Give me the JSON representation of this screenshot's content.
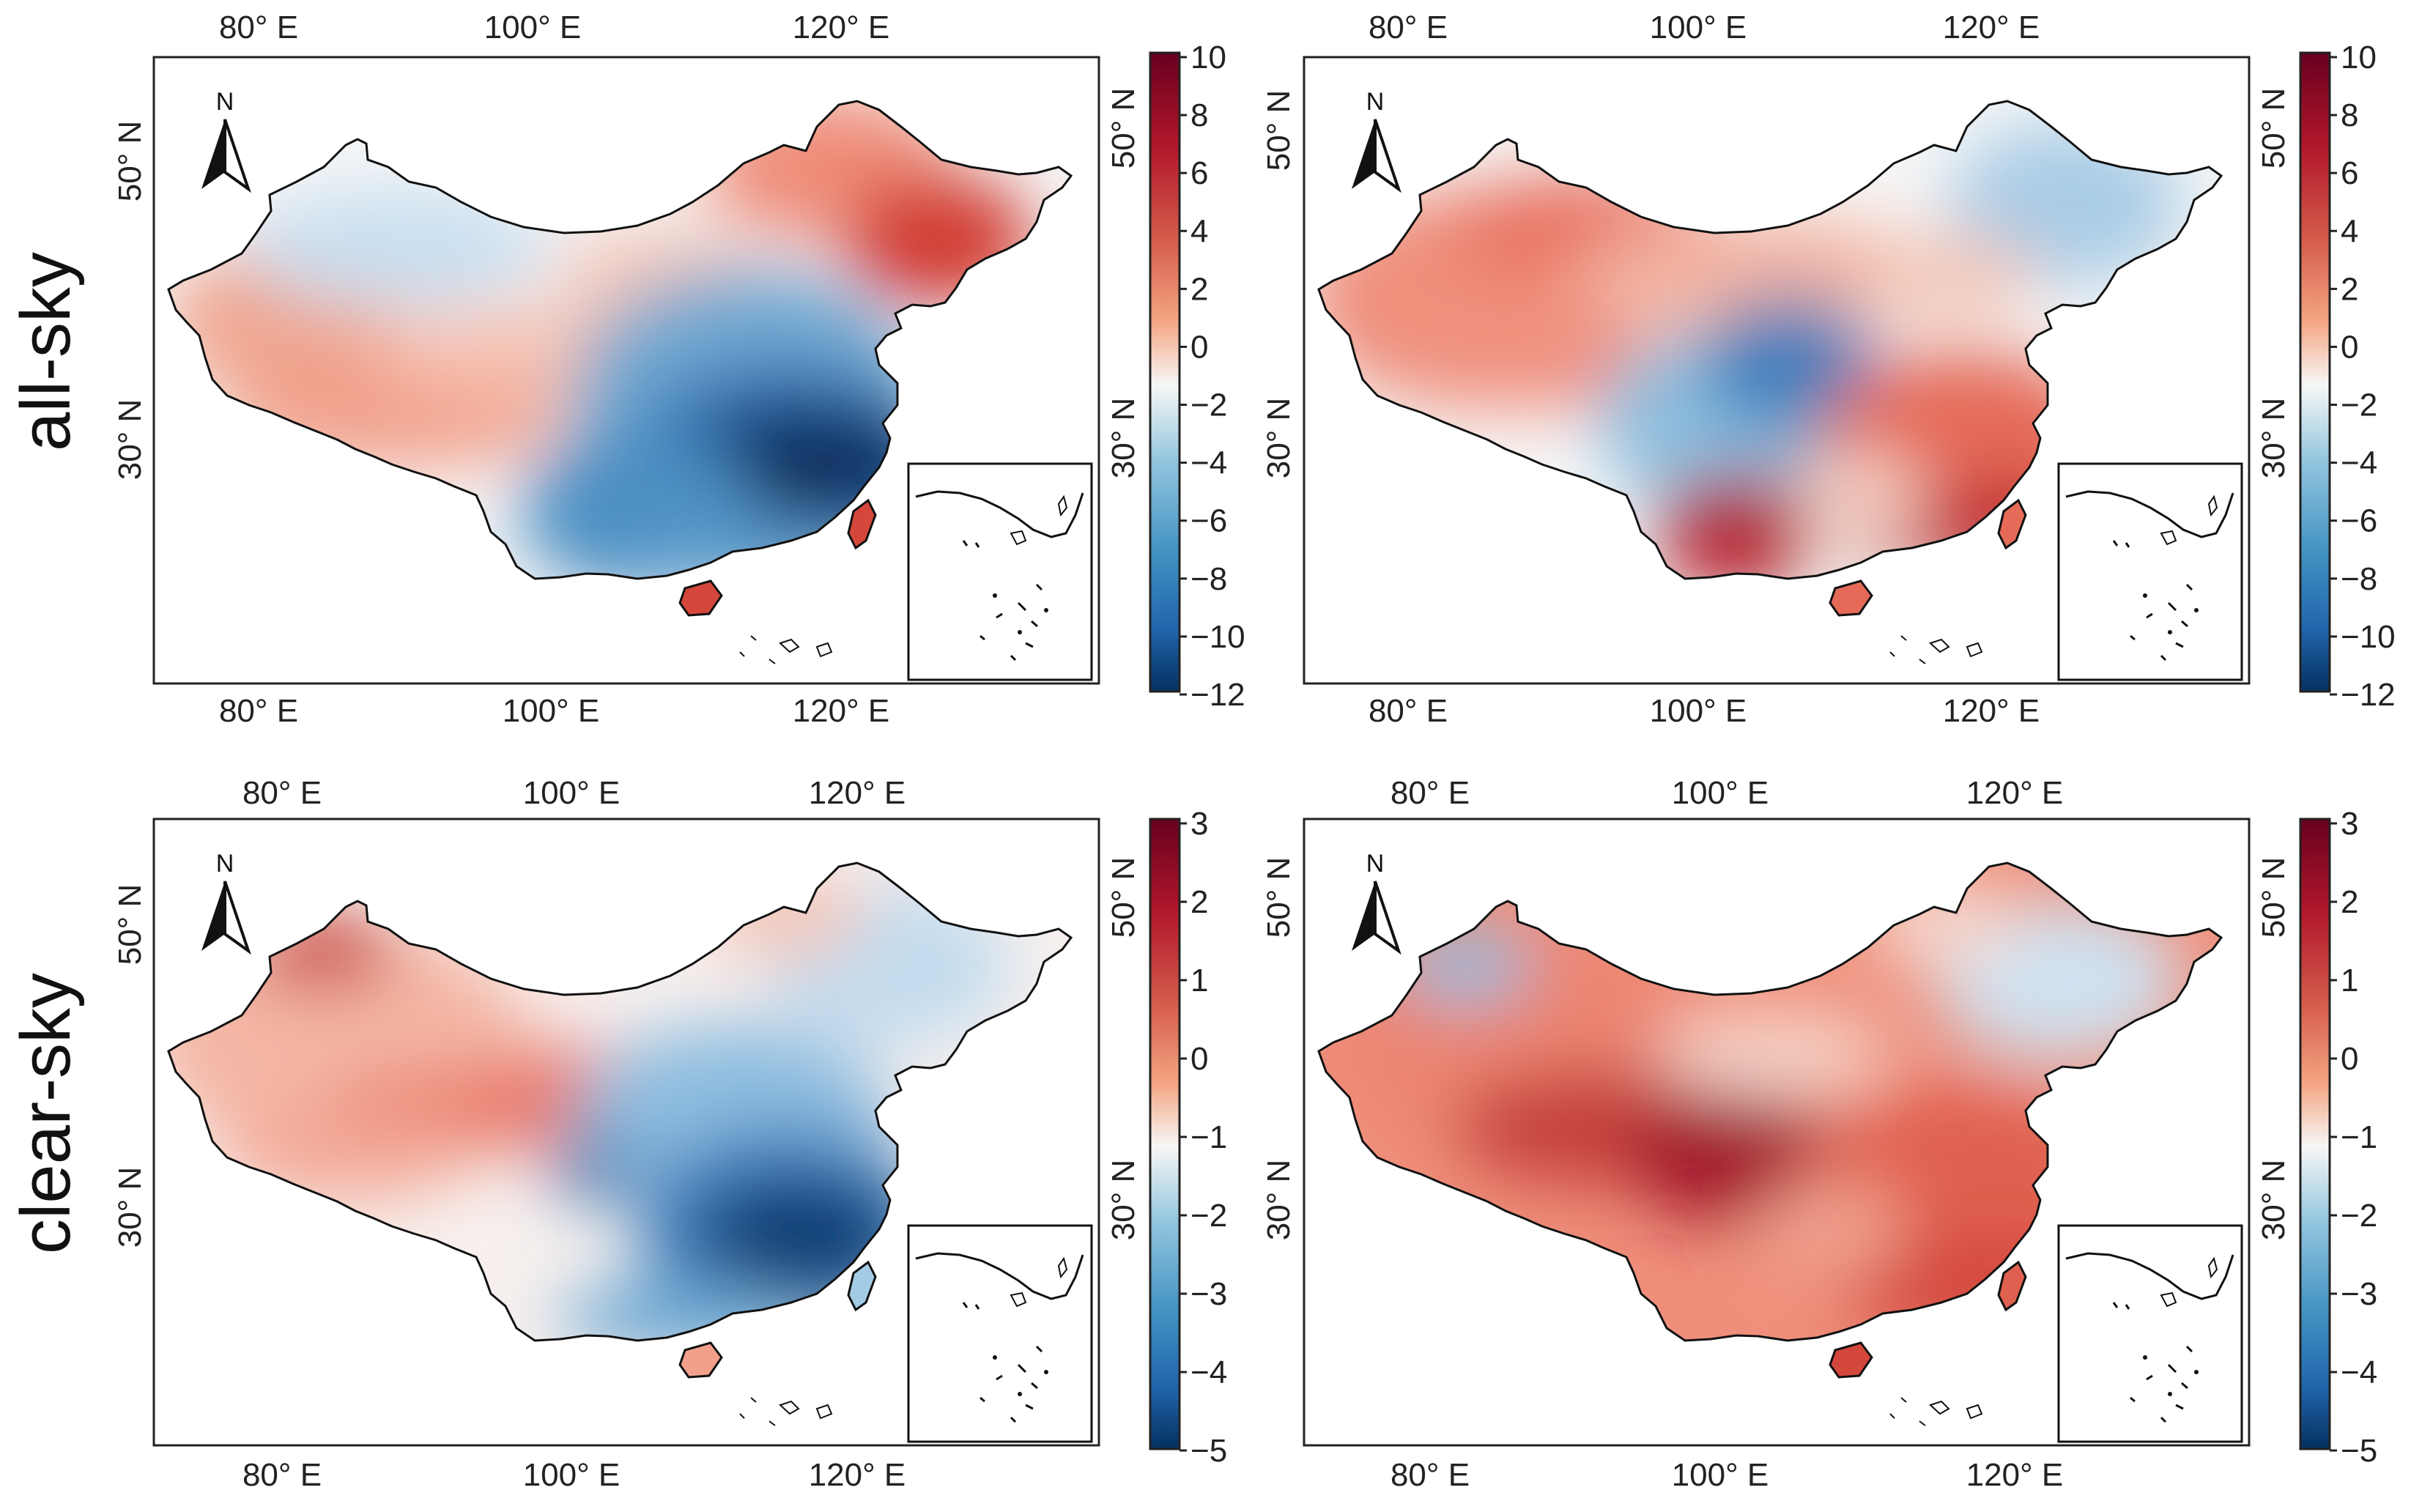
{
  "figure": {
    "row_labels": [
      "all-sky",
      "clear-sky"
    ],
    "north_arrow_label": "N",
    "lon_labels": [
      "80° E",
      "100° E",
      "120° E"
    ],
    "lat_labels": [
      "50° N",
      "30° N"
    ]
  },
  "colorbars": {
    "all_sky": {
      "ticks": [
        "10",
        "8",
        "6",
        "4",
        "2",
        "0",
        "−2",
        "−4",
        "−6",
        "−8",
        "−10",
        "−12"
      ],
      "min": -12,
      "max": 10
    },
    "clear_sky": {
      "ticks": [
        "3",
        "2",
        "1",
        "0",
        "−1",
        "−2",
        "−3",
        "−4",
        "−5"
      ],
      "min": -5,
      "max": 3
    }
  },
  "colors": {
    "deep_red": "#67001f",
    "red": "#d6604d",
    "light_red": "#f4a582",
    "white": "#f7f7f7",
    "light_blue": "#92c5de",
    "blue": "#4393c3",
    "deep_blue": "#053061"
  },
  "panels": [
    {
      "id": "a",
      "row": "all-sky",
      "pattern": "Strong negative (blue) over central-east China around the Yangtze basin; positive (red) in the northeast, Tibet/west and the far south islands."
    },
    {
      "id": "b",
      "row": "all-sky",
      "pattern": "Positive over west and south-east China, strongest in Yunnan and the south coast; negative over the central plateau and the northeast."
    },
    {
      "id": "c",
      "row": "clear-sky",
      "pattern": "Negative centered on central-east China; positive over western China with spots in Xinjiang and Tibet; slight negative in the northeast."
    },
    {
      "id": "d",
      "row": "clear-sky",
      "pattern": "Positive nearly everywhere, strongest over the Tibetan Plateau and the south-east; weak negative in the northeast and a patch in Xinjiang."
    }
  ]
}
